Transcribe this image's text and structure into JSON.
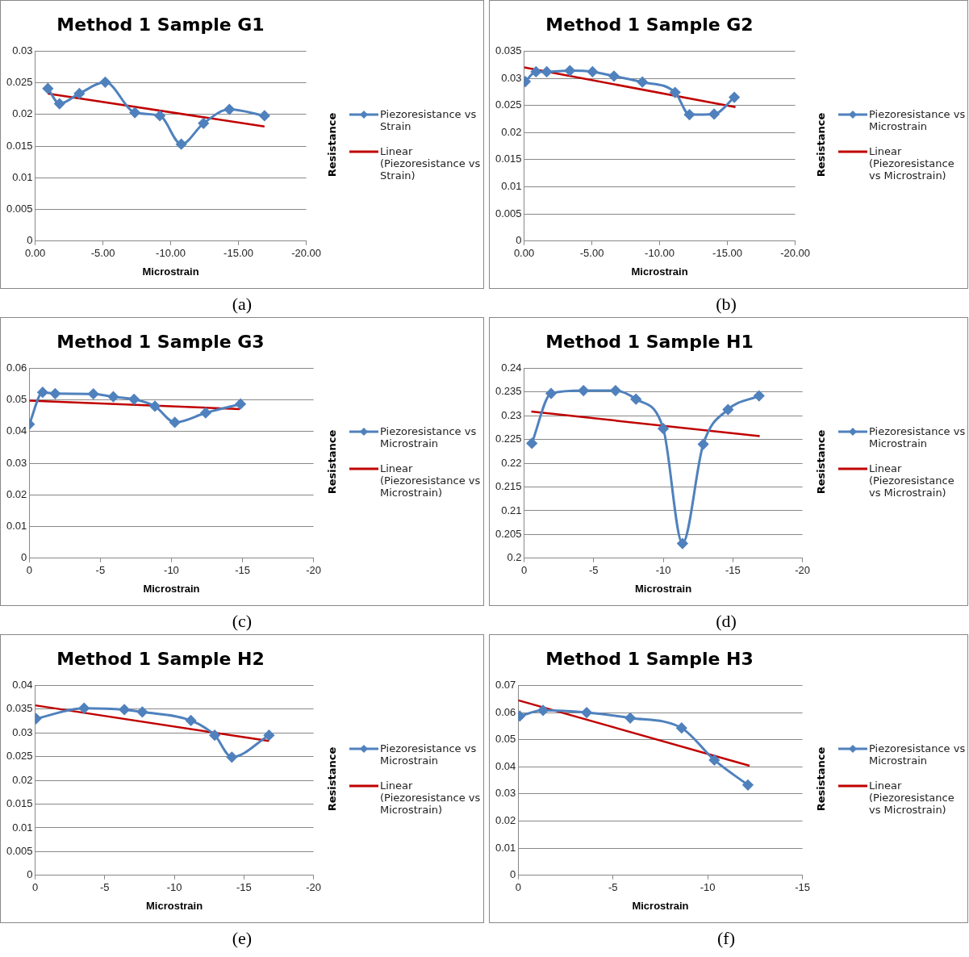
{
  "chart_data": [
    {
      "type": "line",
      "title": "Method 1 Sample G1",
      "xlabel": "Microstrain",
      "ylabel": "Resistance",
      "legend": "right",
      "grid": "y",
      "annotations": [
        "(a)"
      ],
      "xlim": [
        0,
        -20
      ],
      "xticks": [
        {
          "value": 0,
          "label": "0.00"
        },
        {
          "value": -5,
          "label": "-5.00"
        },
        {
          "value": -10,
          "label": "-10.00"
        },
        {
          "value": -15,
          "label": "-15.00"
        },
        {
          "value": -20,
          "label": "-20.00"
        }
      ],
      "ylim": [
        0,
        0.03
      ],
      "yticks": [
        0,
        0.005,
        0.01,
        0.015,
        0.02,
        0.025,
        0.03
      ],
      "series": [
        {
          "name": "Piezoresistance vs Strain",
          "color": "#4f81bd",
          "marker": "diamond",
          "x": [
            -0.94,
            -1.8,
            -3.26,
            -5.17,
            -7.36,
            -9.2,
            -10.78,
            -12.42,
            -14.33,
            -16.92
          ],
          "values": [
            0.0241,
            0.0217,
            0.0233,
            0.0251,
            0.0203,
            0.0198,
            0.0153,
            0.0186,
            0.0208,
            0.0198
          ]
        },
        {
          "name": "Linear (Piezoresistance vs Strain)",
          "color": "#c00000",
          "marker": "none",
          "x": [
            -0.94,
            -16.92
          ],
          "values": [
            0.0233,
            0.0181
          ]
        }
      ]
    },
    {
      "type": "line",
      "title": "Method 1 Sample G2",
      "xlabel": "Microstrain",
      "ylabel": "Resistance",
      "legend": "right",
      "grid": "y",
      "annotations": [
        "(b)"
      ],
      "xlim": [
        0,
        -20
      ],
      "xticks": [
        {
          "value": 0,
          "label": "0.00"
        },
        {
          "value": -5,
          "label": "-5.00"
        },
        {
          "value": -10,
          "label": "-10.00"
        },
        {
          "value": -15,
          "label": "-15.00"
        },
        {
          "value": -20,
          "label": "-20.00"
        }
      ],
      "ylim": [
        0,
        0.035
      ],
      "yticks": [
        0,
        0.005,
        0.01,
        0.015,
        0.02,
        0.025,
        0.03,
        0.035
      ],
      "series": [
        {
          "name": "Piezoresistance vs Microstrain",
          "color": "#4f81bd",
          "marker": "diamond",
          "x": [
            -0.09,
            -0.88,
            -1.67,
            -3.38,
            -5.05,
            -6.63,
            -8.73,
            -11.14,
            -12.2,
            -14.02,
            -15.51
          ],
          "values": [
            0.0294,
            0.0312,
            0.0312,
            0.0314,
            0.0312,
            0.0304,
            0.0293,
            0.0274,
            0.0233,
            0.0234,
            0.0265
          ]
        },
        {
          "name": "Linear (Piezoresistance vs Microstrain)",
          "color": "#c00000",
          "marker": "none",
          "x": [
            0,
            -15.6
          ],
          "values": [
            0.032,
            0.0247
          ]
        }
      ]
    },
    {
      "type": "line",
      "title": "Method 1 Sample G3",
      "xlabel": "Microstrain",
      "ylabel": "Resistance",
      "legend": "right",
      "grid": "y",
      "annotations": [
        "(c)"
      ],
      "xlim": [
        0,
        -20
      ],
      "xticks": [
        0,
        -5,
        -10,
        -15,
        -20
      ],
      "ylim": [
        0,
        0.06
      ],
      "yticks": [
        0,
        0.01,
        0.02,
        0.03,
        0.04,
        0.05,
        0.06
      ],
      "series": [
        {
          "name": "Piezoresistance vs Microstrain",
          "color": "#4f81bd",
          "marker": "diamond",
          "x": [
            0,
            -0.94,
            -1.82,
            -4.51,
            -5.91,
            -7.37,
            -8.84,
            -10.24,
            -12.41,
            -14.86
          ],
          "values": [
            0.0423,
            0.0524,
            0.052,
            0.0519,
            0.051,
            0.0502,
            0.048,
            0.0429,
            0.0459,
            0.0487
          ]
        },
        {
          "name": "Linear (Piezoresistance vs Microstrain)",
          "color": "#c00000",
          "marker": "none",
          "x": [
            0,
            -14.81
          ],
          "values": [
            0.0498,
            0.0471
          ]
        }
      ]
    },
    {
      "type": "line",
      "title": "Method 1 Sample H1",
      "xlabel": "Microstrain",
      "ylabel": "Resistance",
      "legend": "right",
      "grid": "y",
      "annotations": [
        "(d)"
      ],
      "xlim": [
        0,
        -20
      ],
      "xticks": [
        0,
        -5,
        -10,
        -15,
        -20
      ],
      "ylim": [
        0.2,
        0.24
      ],
      "yticks": [
        0.2,
        0.205,
        0.21,
        0.215,
        0.22,
        0.225,
        0.23,
        0.235,
        0.24
      ],
      "series": [
        {
          "name": "Piezoresistance vs Microstrain",
          "color": "#4f81bd",
          "marker": "diamond",
          "x": [
            -0.56,
            -1.94,
            -4.27,
            -6.57,
            -8.04,
            -10.0,
            -11.38,
            -12.87,
            -14.65,
            -16.88
          ],
          "values": [
            0.2242,
            0.2347,
            0.2353,
            0.2353,
            0.2335,
            0.2273,
            0.2031,
            0.224,
            0.2313,
            0.2342
          ]
        },
        {
          "name": "Linear (Piezoresistance vs Microstrain)",
          "color": "#c00000",
          "marker": "none",
          "x": [
            -0.52,
            -16.93
          ],
          "values": [
            0.2309,
            0.2257
          ]
        }
      ]
    },
    {
      "type": "line",
      "title": "Method 1 Sample H2",
      "xlabel": "Microstrain",
      "ylabel": "Resistance",
      "legend": "right",
      "grid": "y",
      "annotations": [
        "(e)"
      ],
      "xlim": [
        0,
        -20
      ],
      "xticks": [
        0,
        -5,
        -10,
        -15,
        -20
      ],
      "ylim": [
        0,
        0.04
      ],
      "yticks": [
        0,
        0.005,
        0.01,
        0.015,
        0.02,
        0.025,
        0.03,
        0.035,
        0.04
      ],
      "series": [
        {
          "name": "Piezoresistance vs Microstrain",
          "color": "#4f81bd",
          "marker": "diamond",
          "x": [
            -0.07,
            -3.52,
            -6.41,
            -7.7,
            -11.19,
            -12.9,
            -14.13,
            -16.8
          ],
          "values": [
            0.033,
            0.0352,
            0.0349,
            0.0344,
            0.0326,
            0.0295,
            0.0249,
            0.0295
          ]
        },
        {
          "name": "Linear (Piezoresistance vs Microstrain)",
          "color": "#c00000",
          "marker": "none",
          "x": [
            0,
            -16.8
          ],
          "values": [
            0.0358,
            0.0283
          ]
        }
      ]
    },
    {
      "type": "line",
      "title": "Method 1 Sample H3",
      "xlabel": "Microstrain",
      "ylabel": "Resistance",
      "legend": "right",
      "grid": "y",
      "annotations": [
        "(f)"
      ],
      "xlim": [
        0,
        -15
      ],
      "xticks": [
        0,
        -5,
        -10,
        -15
      ],
      "ylim": [
        0,
        0.07
      ],
      "yticks": [
        0,
        0.01,
        0.02,
        0.03,
        0.04,
        0.05,
        0.06,
        0.07
      ],
      "series": [
        {
          "name": "Piezoresistance vs Microstrain",
          "color": "#4f81bd",
          "marker": "diamond",
          "x": [
            -0.08,
            -1.31,
            -3.61,
            -5.91,
            -8.62,
            -10.35,
            -12.12
          ],
          "values": [
            0.0587,
            0.0608,
            0.06,
            0.058,
            0.0543,
            0.0425,
            0.0333
          ]
        },
        {
          "name": "Linear (Piezoresistance vs Microstrain)",
          "color": "#c00000",
          "marker": "none",
          "x": [
            0,
            -12.21
          ],
          "values": [
            0.0645,
            0.0404
          ]
        }
      ]
    }
  ]
}
